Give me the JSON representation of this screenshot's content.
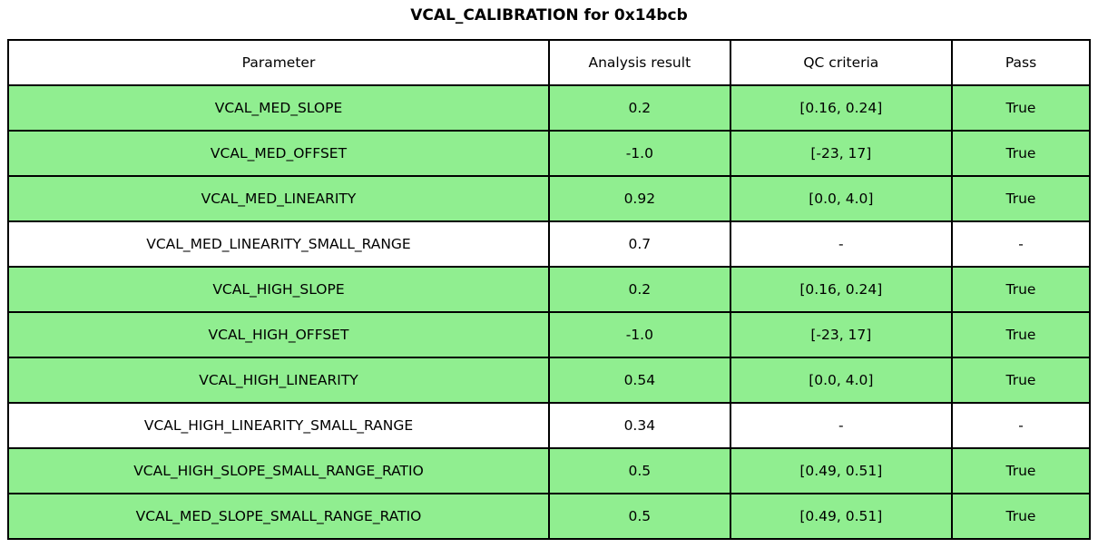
{
  "title": "VCAL_CALIBRATION for 0x14bcb",
  "colors": {
    "pass_row_bg": "#90EE90",
    "neutral_row_bg": "#FFFFFF",
    "header_bg": "#FFFFFF",
    "border": "#000000",
    "text": "#000000"
  },
  "chart_data": {
    "type": "table",
    "title": "VCAL_CALIBRATION for 0x14bcb",
    "columns": [
      "Parameter",
      "Analysis result",
      "QC criteria",
      "Pass"
    ],
    "rows": [
      {
        "parameter": "VCAL_MED_SLOPE",
        "analysis_result": "0.2",
        "qc_criteria": "[0.16, 0.24]",
        "pass": "True",
        "highlighted": true
      },
      {
        "parameter": "VCAL_MED_OFFSET",
        "analysis_result": "-1.0",
        "qc_criteria": "[-23, 17]",
        "pass": "True",
        "highlighted": true
      },
      {
        "parameter": "VCAL_MED_LINEARITY",
        "analysis_result": "0.92",
        "qc_criteria": "[0.0, 4.0]",
        "pass": "True",
        "highlighted": true
      },
      {
        "parameter": "VCAL_MED_LINEARITY_SMALL_RANGE",
        "analysis_result": "0.7",
        "qc_criteria": "-",
        "pass": "-",
        "highlighted": false
      },
      {
        "parameter": "VCAL_HIGH_SLOPE",
        "analysis_result": "0.2",
        "qc_criteria": "[0.16, 0.24]",
        "pass": "True",
        "highlighted": true
      },
      {
        "parameter": "VCAL_HIGH_OFFSET",
        "analysis_result": "-1.0",
        "qc_criteria": "[-23, 17]",
        "pass": "True",
        "highlighted": true
      },
      {
        "parameter": "VCAL_HIGH_LINEARITY",
        "analysis_result": "0.54",
        "qc_criteria": "[0.0, 4.0]",
        "pass": "True",
        "highlighted": true
      },
      {
        "parameter": "VCAL_HIGH_LINEARITY_SMALL_RANGE",
        "analysis_result": "0.34",
        "qc_criteria": "-",
        "pass": "-",
        "highlighted": false
      },
      {
        "parameter": "VCAL_HIGH_SLOPE_SMALL_RANGE_RATIO",
        "analysis_result": "0.5",
        "qc_criteria": "[0.49, 0.51]",
        "pass": "True",
        "highlighted": true
      },
      {
        "parameter": "VCAL_MED_SLOPE_SMALL_RANGE_RATIO",
        "analysis_result": "0.5",
        "qc_criteria": "[0.49, 0.51]",
        "pass": "True",
        "highlighted": true
      }
    ]
  }
}
